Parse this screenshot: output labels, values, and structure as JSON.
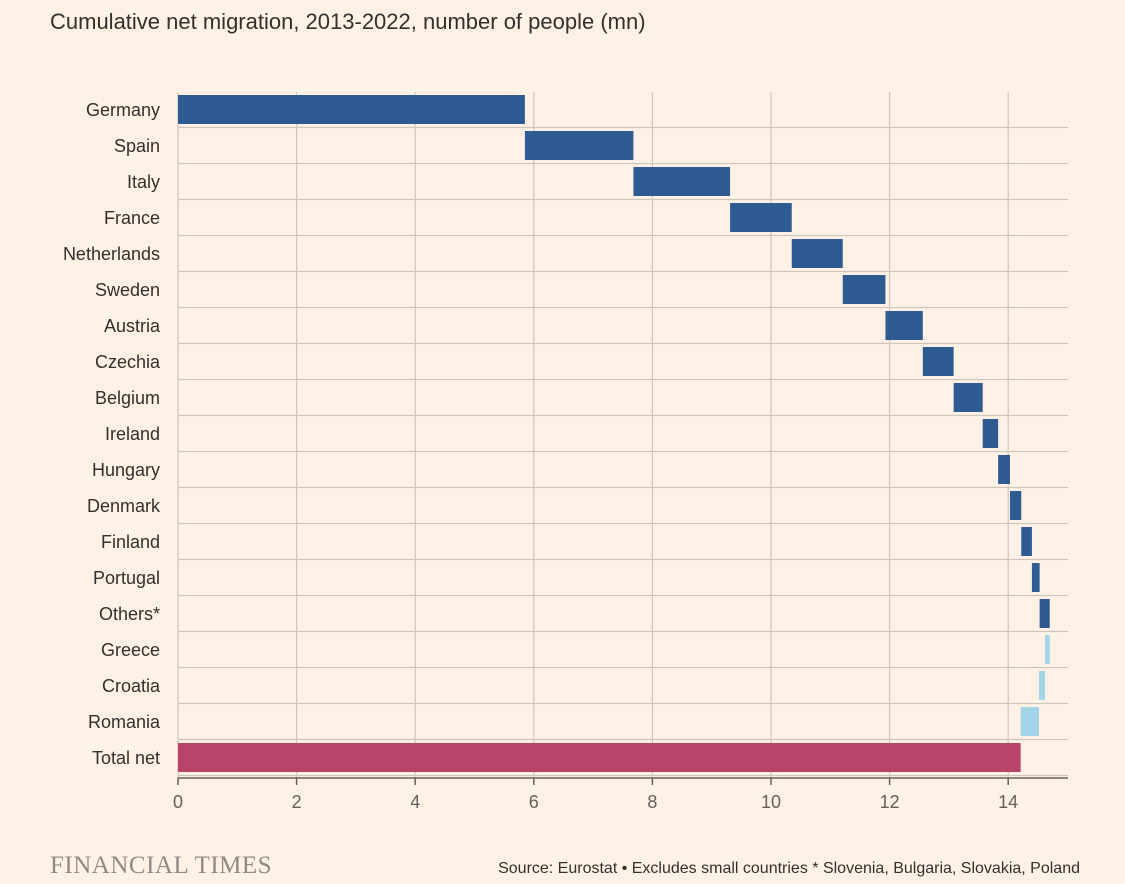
{
  "chart_data": {
    "type": "bar",
    "subtype": "waterfall-horizontal",
    "title": "Cumulative net migration, 2013-2022, number of people (mn)",
    "xlabel": "",
    "ylabel": "",
    "xlim": [
      0,
      15
    ],
    "xticks": [
      0,
      2,
      4,
      6,
      8,
      10,
      12,
      14
    ],
    "grid": true,
    "series": [
      {
        "name": "positive",
        "color": "#2E5C92"
      },
      {
        "name": "negative",
        "color": "#A3D4E8"
      },
      {
        "name": "total",
        "color": "#B8446A"
      }
    ],
    "bars": [
      {
        "label": "Germany",
        "start": 0,
        "end": 5.85,
        "series": "positive"
      },
      {
        "label": "Spain",
        "start": 5.85,
        "end": 7.68,
        "series": "positive"
      },
      {
        "label": "Italy",
        "start": 7.68,
        "end": 9.31,
        "series": "positive"
      },
      {
        "label": "France",
        "start": 9.31,
        "end": 10.35,
        "series": "positive"
      },
      {
        "label": "Netherlands",
        "start": 10.35,
        "end": 11.21,
        "series": "positive"
      },
      {
        "label": "Sweden",
        "start": 11.21,
        "end": 11.93,
        "series": "positive"
      },
      {
        "label": "Austria",
        "start": 11.93,
        "end": 12.56,
        "series": "positive"
      },
      {
        "label": "Czechia",
        "start": 12.56,
        "end": 13.08,
        "series": "positive"
      },
      {
        "label": "Belgium",
        "start": 13.08,
        "end": 13.57,
        "series": "positive"
      },
      {
        "label": "Ireland",
        "start": 13.57,
        "end": 13.83,
        "series": "positive"
      },
      {
        "label": "Hungary",
        "start": 13.83,
        "end": 14.03,
        "series": "positive"
      },
      {
        "label": "Denmark",
        "start": 14.03,
        "end": 14.22,
        "series": "positive"
      },
      {
        "label": "Finland",
        "start": 14.22,
        "end": 14.4,
        "series": "positive"
      },
      {
        "label": "Portugal",
        "start": 14.4,
        "end": 14.53,
        "series": "positive"
      },
      {
        "label": "Others*",
        "start": 14.53,
        "end": 14.7,
        "series": "positive"
      },
      {
        "label": "Greece",
        "start": 14.7,
        "end": 14.62,
        "series": "negative"
      },
      {
        "label": "Croatia",
        "start": 14.62,
        "end": 14.52,
        "series": "negative"
      },
      {
        "label": "Romania",
        "start": 14.52,
        "end": 14.21,
        "series": "negative"
      },
      {
        "label": "Total net",
        "start": 0,
        "end": 14.21,
        "series": "total"
      }
    ]
  },
  "footer": {
    "brand": "FINANCIAL TIMES",
    "source": "Source: Eurostat • Excludes small countries * Slovenia, Bulgaria, Slovakia, Poland"
  }
}
